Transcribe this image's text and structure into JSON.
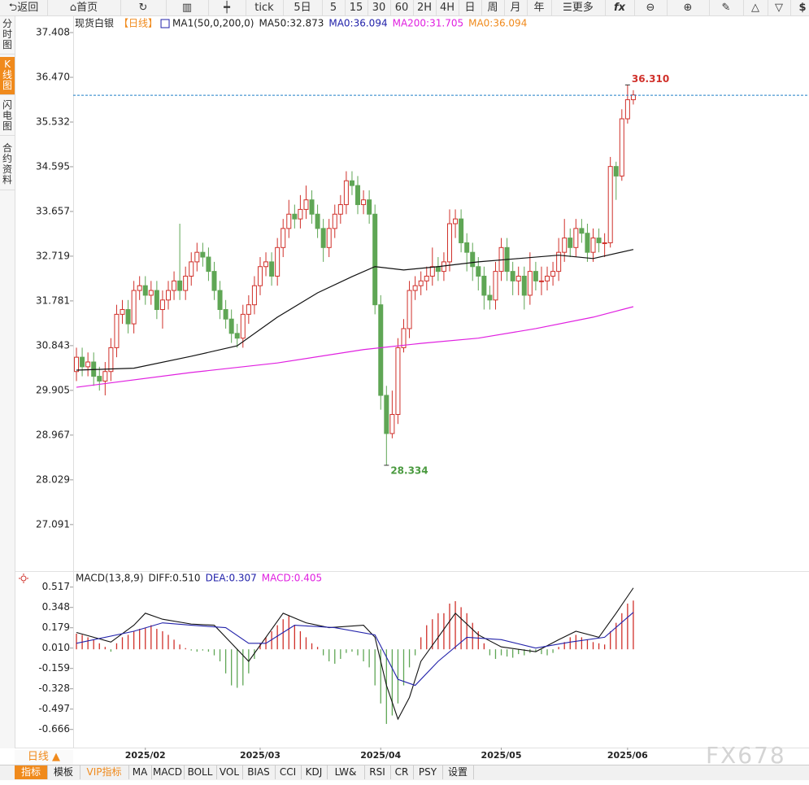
{
  "toolbar": [
    "返回",
    "首页",
    "tick",
    "5日",
    "5",
    "15",
    "30",
    "60",
    "2H",
    "4H",
    "日",
    "周",
    "月",
    "年",
    "更多",
    "$"
  ],
  "sidebar": [
    "分时图",
    "K线图",
    "闪电图",
    "合约资料"
  ],
  "period_label": "日线 ▲",
  "tabs": [
    "指标",
    "模板",
    "VIP指标",
    "MA",
    "MACD",
    "BOLL",
    "VOL",
    "BIAS",
    "CCI",
    "KDJ",
    "LW&",
    "RSI",
    "CR",
    "PSY",
    "设置"
  ],
  "watermark": "FX678",
  "chart_data": [
    {
      "type": "candlestick",
      "legend": [
        {
          "text": "现货白银",
          "color": "#222222"
        },
        {
          "text": "【日线】",
          "color": "#f08a1c"
        },
        {
          "text": "MA1(50,0,200,0)",
          "color": "#222222"
        },
        {
          "text": "MA50:32.873",
          "color": "#222222"
        },
        {
          "text": "MA0:36.094",
          "color": "#2222aa"
        },
        {
          "text": "MA200:31.705",
          "color": "#e020e0"
        },
        {
          "text": "MA0:36.094",
          "color": "#f08a1c"
        }
      ],
      "up_color": "#d0302a",
      "down_color": "#5fa655",
      "open": [
        30.3,
        30.6,
        30.4,
        30.5,
        30.2,
        30.1,
        30.3,
        30.8,
        31.5,
        31.6,
        31.3,
        32.0,
        32.1,
        31.9,
        32.0,
        31.6,
        31.8,
        32.0,
        32.2,
        32.0,
        32.3,
        32.6,
        32.8,
        32.7,
        32.4,
        32.0,
        31.6,
        31.4,
        31.1,
        31.0,
        31.5,
        31.7,
        32.1,
        32.5,
        32.6,
        32.3,
        32.9,
        33.3,
        33.6,
        33.5,
        33.7,
        33.9,
        33.6,
        33.3,
        32.9,
        33.3,
        33.6,
        33.8,
        34.3,
        34.2,
        33.8,
        33.9,
        33.6,
        31.7,
        29.8,
        29.0,
        29.4,
        30.8,
        31.2,
        32.0,
        32.1,
        32.2,
        32.3,
        32.5,
        32.4,
        32.6,
        33.4,
        33.5,
        33.0,
        32.8,
        32.5,
        32.3,
        31.9,
        31.8,
        32.4,
        32.9,
        32.4,
        32.2,
        32.3,
        31.9,
        32.4,
        32.2,
        32.2,
        32.3,
        32.4,
        32.8,
        33.1,
        32.9,
        33.3,
        33.2,
        32.8,
        33.1,
        33.0,
        33.0,
        34.6,
        34.4,
        35.6,
        36.0
      ],
      "high": [
        30.8,
        30.8,
        30.7,
        30.7,
        30.4,
        30.5,
        31.0,
        31.7,
        31.8,
        31.8,
        32.2,
        32.3,
        32.3,
        32.2,
        32.2,
        32.0,
        32.2,
        32.4,
        33.4,
        32.5,
        32.8,
        33.0,
        33.0,
        32.9,
        32.6,
        32.2,
        31.8,
        31.6,
        31.3,
        31.7,
        31.9,
        32.3,
        32.7,
        32.8,
        32.8,
        33.1,
        33.5,
        33.9,
        33.8,
        34.0,
        34.2,
        34.1,
        33.8,
        33.5,
        33.5,
        33.8,
        34.0,
        34.5,
        34.5,
        34.4,
        34.1,
        34.1,
        33.8,
        31.9,
        30.0,
        29.9,
        31.0,
        31.4,
        32.2,
        32.3,
        32.4,
        32.5,
        32.9,
        32.7,
        32.8,
        33.7,
        33.7,
        33.7,
        33.2,
        33.0,
        32.7,
        32.5,
        32.1,
        32.6,
        33.1,
        33.1,
        32.6,
        32.5,
        32.5,
        32.8,
        32.6,
        32.5,
        32.5,
        32.6,
        33.1,
        33.5,
        33.3,
        33.5,
        33.5,
        33.4,
        33.3,
        33.3,
        33.2,
        34.8,
        34.7,
        35.8,
        36.31,
        36.2
      ],
      "low": [
        30.1,
        30.2,
        30.2,
        30.0,
        29.9,
        29.8,
        30.1,
        30.6,
        31.3,
        31.1,
        31.1,
        31.8,
        31.7,
        31.7,
        31.4,
        31.2,
        31.6,
        31.8,
        31.8,
        31.8,
        32.1,
        32.4,
        32.5,
        32.2,
        31.8,
        31.4,
        31.2,
        30.9,
        30.8,
        30.8,
        31.3,
        31.5,
        31.9,
        32.3,
        32.1,
        32.1,
        32.7,
        33.1,
        33.3,
        33.3,
        33.5,
        33.4,
        33.1,
        32.6,
        32.7,
        33.1,
        33.4,
        33.6,
        34.0,
        33.6,
        33.6,
        33.4,
        31.5,
        29.5,
        28.334,
        28.9,
        29.2,
        30.7,
        31.0,
        31.8,
        31.9,
        32.0,
        32.1,
        32.2,
        32.2,
        32.4,
        33.1,
        32.8,
        32.4,
        32.2,
        32.0,
        31.6,
        31.6,
        31.6,
        32.2,
        32.2,
        31.9,
        31.9,
        31.6,
        31.7,
        32.0,
        31.9,
        32.0,
        32.1,
        32.2,
        32.6,
        32.7,
        32.7,
        33.0,
        32.6,
        32.6,
        32.8,
        32.7,
        32.9,
        33.9,
        34.3,
        35.5,
        35.9
      ],
      "close": [
        30.6,
        30.4,
        30.5,
        30.2,
        30.1,
        30.3,
        30.8,
        31.5,
        31.6,
        31.3,
        32.0,
        32.1,
        31.9,
        32.0,
        31.6,
        31.8,
        32.0,
        32.2,
        32.0,
        32.3,
        32.6,
        32.8,
        32.7,
        32.4,
        32.0,
        31.6,
        31.4,
        31.1,
        31.0,
        31.5,
        31.7,
        32.1,
        32.5,
        32.6,
        32.3,
        32.9,
        33.3,
        33.6,
        33.5,
        33.7,
        33.9,
        33.6,
        33.3,
        32.9,
        33.3,
        33.6,
        33.8,
        34.3,
        34.2,
        33.8,
        33.9,
        33.6,
        31.7,
        29.8,
        29.0,
        29.4,
        30.8,
        31.2,
        32.0,
        32.1,
        32.2,
        32.3,
        32.5,
        32.4,
        32.6,
        33.4,
        33.5,
        33.0,
        32.8,
        32.5,
        32.3,
        31.9,
        31.8,
        32.4,
        32.9,
        32.4,
        32.2,
        32.3,
        31.9,
        32.4,
        32.2,
        32.2,
        32.3,
        32.4,
        32.8,
        33.1,
        32.9,
        33.3,
        33.2,
        32.8,
        33.1,
        33.0,
        33.0,
        34.6,
        34.4,
        35.6,
        36.0,
        36.1
      ],
      "overlays": [
        {
          "color": "#111111",
          "x": [
            0,
            10,
            20,
            28,
            35,
            42,
            48,
            52,
            57,
            63,
            70,
            77,
            84,
            90,
            97
          ],
          "values": [
            30.33,
            30.37,
            30.62,
            30.84,
            31.44,
            31.95,
            32.29,
            32.5,
            32.43,
            32.5,
            32.6,
            32.67,
            32.74,
            32.67,
            32.86
          ]
        },
        {
          "color": "#e020e0",
          "x": [
            0,
            20,
            35,
            50,
            60,
            70,
            80,
            90,
            97
          ],
          "values": [
            29.97,
            30.28,
            30.48,
            30.76,
            30.89,
            31.0,
            31.2,
            31.44,
            31.66
          ]
        }
      ],
      "price_line": 36.094,
      "price_line_color": "#1e7fc8",
      "annotations": [
        {
          "label": "36.310",
          "value": 36.31,
          "color": "#d0302a"
        },
        {
          "label": "28.334",
          "value": 28.334,
          "color": "#4a9a3f"
        }
      ],
      "xlim": [
        -0.57,
        127.6
      ],
      "ylim": [
        26.15,
        37.75
      ],
      "yticks": [
        {
          "value": 37.408,
          "label": "37.408"
        },
        {
          "value": 36.47,
          "label": "36.470"
        },
        35.532,
        34.595,
        33.657,
        32.719,
        31.781,
        30.843,
        29.905,
        28.967,
        28.029,
        27.091
      ]
    },
    {
      "type": "macd",
      "legend": [
        {
          "text": "MACD(13,8,9)",
          "color": "#222222"
        },
        {
          "text": "DIFF:0.510",
          "color": "#222222"
        },
        {
          "text": "DEA:0.307",
          "color": "#2222aa"
        },
        {
          "text": "MACD:0.405",
          "color": "#e020e0"
        }
      ],
      "up_color": "#d0302a",
      "down_color": "#5fa655",
      "histogram": [
        0.13,
        0.12,
        0.1,
        0.08,
        0.05,
        0.02,
        -0.02,
        0.05,
        0.1,
        0.12,
        0.15,
        0.17,
        0.18,
        0.2,
        0.17,
        0.15,
        0.12,
        0.08,
        0.04,
        0.01,
        -0.01,
        -0.02,
        -0.01,
        -0.02,
        -0.05,
        -0.1,
        -0.2,
        -0.3,
        -0.32,
        -0.3,
        -0.2,
        -0.08,
        0.05,
        0.1,
        0.15,
        0.2,
        0.25,
        0.28,
        0.2,
        0.15,
        0.1,
        0.05,
        0.02,
        -0.05,
        -0.1,
        -0.12,
        -0.08,
        -0.03,
        -0.02,
        -0.05,
        -0.1,
        -0.15,
        -0.3,
        -0.45,
        -0.62,
        -0.55,
        -0.45,
        -0.3,
        -0.15,
        -0.05,
        0.1,
        0.2,
        0.25,
        0.3,
        0.3,
        0.38,
        0.4,
        0.35,
        0.3,
        0.22,
        0.15,
        0.05,
        -0.05,
        -0.08,
        -0.05,
        -0.06,
        -0.07,
        -0.04,
        -0.05,
        -0.03,
        -0.02,
        -0.04,
        -0.05,
        -0.03,
        0.02,
        0.06,
        0.1,
        0.12,
        0.1,
        0.08,
        0.06,
        0.05,
        0.04,
        0.15,
        0.22,
        0.3,
        0.38,
        0.405
      ],
      "lines": [
        {
          "color": "#111111",
          "x": [
            0,
            6,
            10,
            12,
            15,
            20,
            24,
            27,
            30,
            33,
            36,
            40,
            44,
            50,
            52,
            54,
            56,
            58,
            60,
            63,
            66,
            70,
            74,
            80,
            84,
            87,
            91,
            94,
            97
          ],
          "values": [
            0.14,
            0.06,
            0.2,
            0.3,
            0.25,
            0.21,
            0.2,
            0.05,
            -0.1,
            0.1,
            0.3,
            0.22,
            0.18,
            0.2,
            0.1,
            -0.3,
            -0.58,
            -0.4,
            -0.1,
            0.1,
            0.3,
            0.12,
            0.02,
            -0.02,
            0.08,
            0.15,
            0.1,
            0.3,
            0.51
          ]
        },
        {
          "color": "#2222aa",
          "x": [
            0,
            10,
            15,
            20,
            26,
            30,
            33,
            38,
            45,
            52,
            56,
            59,
            63,
            68,
            74,
            80,
            86,
            92,
            97
          ],
          "values": [
            0.05,
            0.15,
            0.22,
            0.2,
            0.18,
            0.05,
            0.05,
            0.2,
            0.18,
            0.12,
            -0.25,
            -0.3,
            -0.1,
            0.1,
            0.08,
            0.01,
            0.06,
            0.1,
            0.307
          ]
        }
      ],
      "xlim": [
        -0.57,
        127.6
      ],
      "ylim": [
        -0.81,
        0.63
      ],
      "yticks": [
        0.517,
        0.348,
        0.179,
        {
          "value": 0.01,
          "label": "0.010"
        },
        -0.159,
        -0.328,
        -0.497,
        -0.666
      ],
      "xticks": [
        {
          "value": 12,
          "label": "2025/02"
        },
        {
          "value": 32,
          "label": "2025/03"
        },
        {
          "value": 53,
          "label": "2025/04"
        },
        {
          "value": 74,
          "label": "2025/05"
        },
        {
          "value": 96,
          "label": "2025/06"
        }
      ]
    }
  ]
}
